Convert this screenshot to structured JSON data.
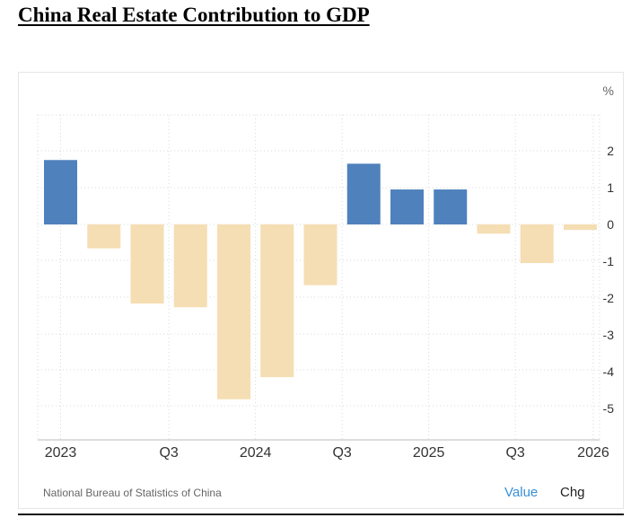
{
  "page": {
    "title": "China Real Estate Contribution to GDP"
  },
  "footer": {
    "source": "National Bureau of Statistics of China",
    "value_toggle": "Value",
    "chg_toggle": "Chg"
  },
  "colors": {
    "positive": "#4f81bd",
    "negative": "#f5deb3",
    "grid": "#d9d9d9",
    "axis_text": "#333333"
  },
  "chart_data": {
    "type": "bar",
    "unit": "%",
    "values": [
      1.75,
      -0.65,
      -2.15,
      -2.25,
      -4.75,
      -4.15,
      -1.65,
      1.65,
      0.95,
      0.95,
      -0.25,
      -1.05,
      -0.15
    ],
    "x_tick_labels": [
      {
        "index": 0,
        "label": "2023"
      },
      {
        "index": 2.5,
        "label": "Q3"
      },
      {
        "index": 4.5,
        "label": "2024"
      },
      {
        "index": 6.5,
        "label": "Q3"
      },
      {
        "index": 8.5,
        "label": "2025"
      },
      {
        "index": 10.5,
        "label": "Q3"
      },
      {
        "index": 12.3,
        "label": "2026"
      }
    ],
    "y_ticks": [
      2,
      1,
      0,
      -1,
      -2,
      -3,
      -4,
      -5
    ],
    "ylim": [
      -5.6,
      3
    ],
    "grid": true
  }
}
